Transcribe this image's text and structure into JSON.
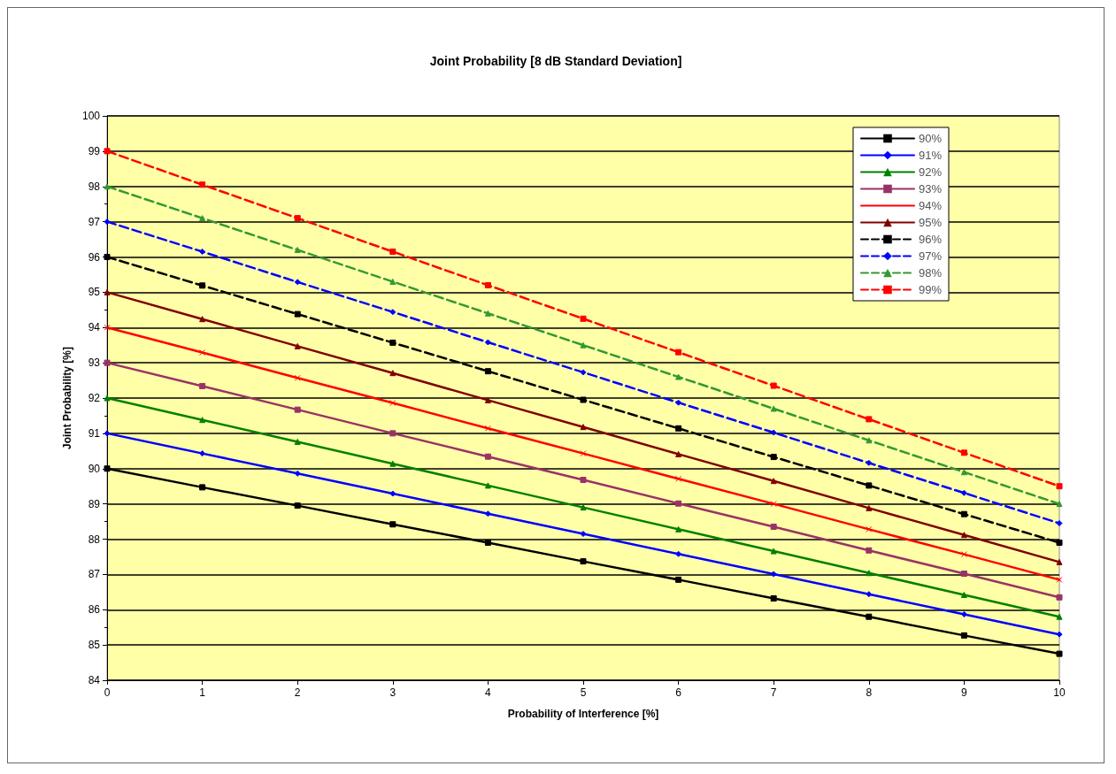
{
  "chart_data": {
    "type": "line",
    "title": "Joint Probability [8 dB Standard Deviation]",
    "xlabel": "Probability of Interference [%]",
    "ylabel": "Joint Probability [%]",
    "x": [
      0,
      1,
      2,
      3,
      4,
      5,
      6,
      7,
      8,
      9,
      10
    ],
    "xlim": [
      0,
      10
    ],
    "xticks": [
      0,
      1,
      2,
      3,
      4,
      5,
      6,
      7,
      8,
      9,
      10
    ],
    "ylim": [
      84,
      100
    ],
    "yticks": [
      84,
      85,
      86,
      87,
      88,
      89,
      90,
      91,
      92,
      93,
      94,
      95,
      96,
      97,
      98,
      99,
      100
    ],
    "grid": "y",
    "legend": "top right",
    "series": [
      {
        "name": "90%",
        "color": "#000000",
        "marker": "square",
        "line_style": "solid",
        "values": [
          90,
          89.47,
          88.95,
          88.42,
          87.9,
          87.37,
          86.85,
          86.32,
          85.8,
          85.27,
          84.75
        ]
      },
      {
        "name": "91%",
        "color": "#0000ff",
        "marker": "diamond",
        "line_style": "solid",
        "values": [
          91,
          90.43,
          89.86,
          89.29,
          88.72,
          88.15,
          87.58,
          87.01,
          86.44,
          85.87,
          85.3
        ]
      },
      {
        "name": "92%",
        "color": "#008000",
        "marker": "triangle",
        "line_style": "solid",
        "values": [
          92,
          91.38,
          90.76,
          90.14,
          89.52,
          88.9,
          88.28,
          87.66,
          87.04,
          86.42,
          85.8
        ]
      },
      {
        "name": "93%",
        "color": "#993366",
        "marker": "square",
        "line_style": "solid",
        "values": [
          93,
          92.34,
          91.67,
          91,
          90.34,
          89.68,
          89.01,
          88.35,
          87.68,
          87.02,
          86.35
        ]
      },
      {
        "name": "94%",
        "color": "#ff0000",
        "marker": "cross",
        "line_style": "solid",
        "values": [
          94,
          93.29,
          92.57,
          91.86,
          91.14,
          90.43,
          89.71,
          89,
          88.28,
          87.57,
          86.85
        ]
      },
      {
        "name": "95%",
        "color": "#800000",
        "marker": "triangle",
        "line_style": "solid",
        "values": [
          95,
          94.24,
          93.47,
          92.71,
          91.94,
          91.18,
          90.41,
          89.65,
          88.88,
          88.12,
          87.35
        ]
      },
      {
        "name": "96%",
        "color": "#000000",
        "marker": "square",
        "line_style": "dashed",
        "values": [
          96,
          95.19,
          94.38,
          93.57,
          92.76,
          91.95,
          91.14,
          90.33,
          89.52,
          88.71,
          87.9
        ]
      },
      {
        "name": "97%",
        "color": "#0000ff",
        "marker": "diamond",
        "line_style": "dashed",
        "values": [
          97,
          96.15,
          95.29,
          94.44,
          93.58,
          92.73,
          91.87,
          91.02,
          90.16,
          89.31,
          88.45
        ]
      },
      {
        "name": "98%",
        "color": "#339933",
        "marker": "triangle",
        "line_style": "dashed",
        "values": [
          98,
          97.1,
          96.2,
          95.3,
          94.4,
          93.5,
          92.6,
          91.7,
          90.8,
          89.9,
          89
        ]
      },
      {
        "name": "99%",
        "color": "#ff0000",
        "marker": "square",
        "line_style": "dashed",
        "values": [
          99,
          98.05,
          97.1,
          96.15,
          95.2,
          94.25,
          93.3,
          92.35,
          91.4,
          90.45,
          89.5
        ]
      }
    ]
  }
}
